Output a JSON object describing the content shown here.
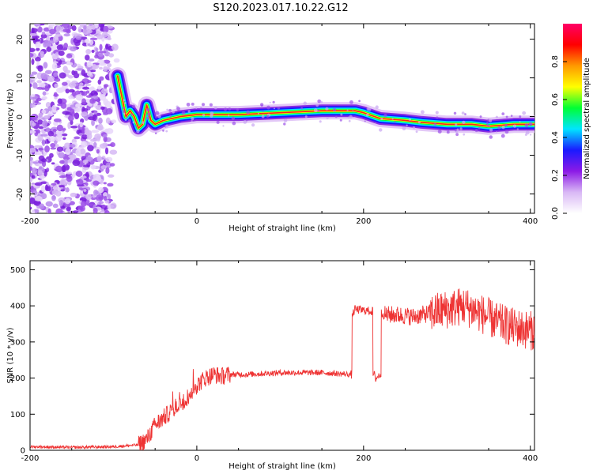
{
  "figure": {
    "title": "S120.2023.017.10.22.G12"
  },
  "chart_data": [
    {
      "type": "heatmap",
      "xlabel": "Height of straight line (km)",
      "ylabel": "Frequency (Hz)",
      "xlim": [
        -200,
        405
      ],
      "ylim": [
        -25,
        24
      ],
      "xticks": [
        -200,
        0,
        200,
        400
      ],
      "yticks": [
        -20,
        -10,
        0,
        10,
        20
      ],
      "colorbar": {
        "label": "Normalized spectral amplitude",
        "range": [
          0,
          1
        ],
        "ticks": [
          0.0,
          0.2,
          0.4,
          0.6,
          0.8
        ],
        "tick_labels": [
          "0.0",
          "0.2",
          "0.4",
          "0.6",
          "0.8"
        ],
        "colors": [
          "#ffffff",
          "#d9b8f5",
          "#8c1ae6",
          "#1a1aff",
          "#00e5ff",
          "#00ff33",
          "#ffff00",
          "#ff9900",
          "#ff0000",
          "#ff0066"
        ]
      },
      "ridge": {
        "x": [
          -95,
          -85,
          -80,
          -75,
          -70,
          -65,
          -60,
          -55,
          -50,
          -45,
          -40,
          -30,
          -20,
          0,
          50,
          100,
          150,
          190,
          200,
          220,
          250,
          270,
          300,
          330,
          350,
          380,
          405
        ],
        "y": [
          10.5,
          0,
          1.5,
          0,
          -3,
          -2,
          3,
          -1,
          -2,
          -1.5,
          -1,
          -0.5,
          0,
          0.5,
          0.5,
          1,
          1.5,
          1.5,
          1,
          -0.5,
          -1,
          -1.5,
          -2,
          -2,
          -2.5,
          -2,
          -2
        ]
      },
      "noise_region": {
        "x": [
          -200,
          -95
        ],
        "y": [
          -25,
          24
        ]
      }
    },
    {
      "type": "line",
      "xlabel": "Height of straight line (km)",
      "ylabel": "SNR (10 * v/v)",
      "xlim": [
        -200,
        405
      ],
      "ylim": [
        0,
        525
      ],
      "xticks": [
        -200,
        0,
        200,
        400
      ],
      "yticks": [
        0,
        100,
        200,
        300,
        400,
        500
      ],
      "series_color": "#ee3333",
      "series": [
        {
          "x": [
            -200,
            -150,
            -100,
            -70,
            -60,
            -50,
            -40,
            -30,
            -20,
            -10,
            0,
            10,
            20,
            30,
            40,
            60,
            100,
            150,
            185,
            187,
            190,
            210,
            212,
            215,
            220,
            222,
            225,
            240,
            260,
            300,
            320,
            340,
            360,
            380,
            405
          ],
          "y": [
            10,
            8,
            10,
            15,
            30,
            70,
            90,
            110,
            130,
            150,
            180,
            200,
            210,
            205,
            210,
            210,
            215,
            215,
            210,
            380,
            390,
            385,
            210,
            200,
            210,
            380,
            375,
            375,
            370,
            390,
            400,
            380,
            355,
            340,
            330
          ]
        }
      ]
    }
  ]
}
